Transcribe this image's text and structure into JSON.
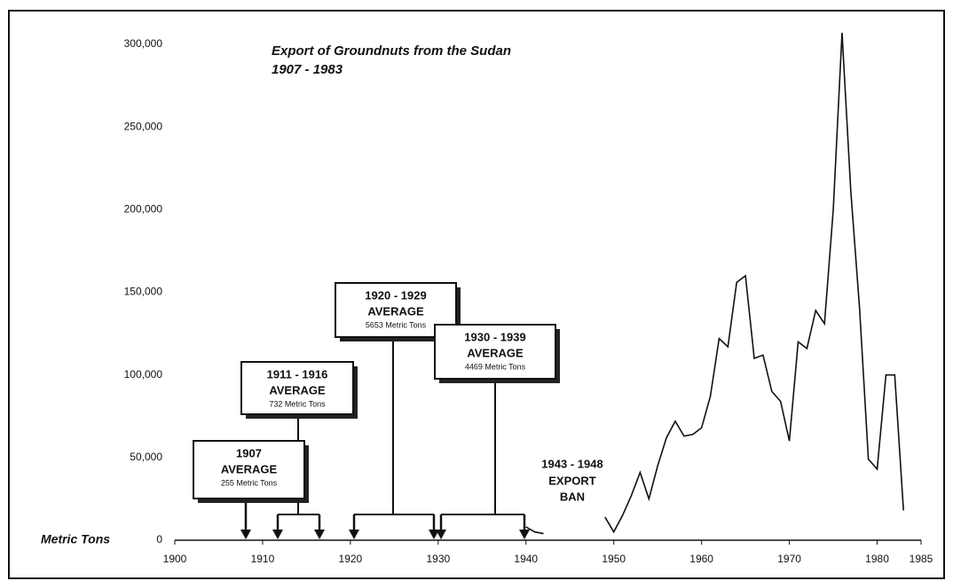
{
  "chart_data": {
    "type": "line",
    "title": "Export of Groundnuts from the Sudan",
    "subtitle": "1907 - 1983",
    "y_label": "Metric Tons",
    "x": [
      1940,
      1941,
      1942,
      1943,
      1949,
      1950,
      1951,
      1952,
      1953,
      1954,
      1955,
      1956,
      1957,
      1958,
      1959,
      1960,
      1961,
      1962,
      1963,
      1964,
      1965,
      1966,
      1967,
      1968,
      1969,
      1970,
      1971,
      1972,
      1973,
      1974,
      1975,
      1976,
      1977,
      1978,
      1979,
      1980,
      1981,
      1982,
      1983
    ],
    "series": [
      {
        "name": "Exports",
        "color": "#111111",
        "values": [
          8000,
          5000,
          4000,
          null,
          14000,
          5000,
          15000,
          27000,
          41000,
          25000,
          45000,
          62000,
          72000,
          63000,
          64000,
          68000,
          87000,
          122000,
          117000,
          156000,
          160000,
          110000,
          112000,
          90000,
          84000,
          60000,
          120000,
          116000,
          139000,
          131000,
          200000,
          307000,
          211000,
          140000,
          49000,
          43000,
          100000,
          100000,
          18000
        ]
      }
    ],
    "xlim": [
      1900,
      1985
    ],
    "ylim": [
      0,
      300000
    ],
    "xticks": [
      1900,
      1910,
      1920,
      1930,
      1940,
      1950,
      1960,
      1970,
      1980,
      1985
    ],
    "yticks": [
      0,
      {
        "value": 50000,
        "label": "50,000"
      },
      {
        "value": 100000,
        "label": "100,000"
      },
      {
        "value": 150000,
        "label": "150,000"
      },
      {
        "value": 200000,
        "label": "200,000"
      },
      {
        "value": 250000,
        "label": "250,000"
      },
      {
        "value": 300000,
        "label": "300,000"
      }
    ],
    "annotations": [
      {
        "lines": [
          "1907",
          "AVERAGE",
          "255 Metric Tons"
        ]
      },
      {
        "lines": [
          "1911 - 1916",
          "AVERAGE",
          "732 Metric Tons"
        ]
      },
      {
        "lines": [
          "1920 - 1929",
          "AVERAGE",
          "5653 Metric Tons"
        ]
      },
      {
        "lines": [
          "1930 - 1939",
          "AVERAGE",
          "4469 Metric Tons"
        ]
      },
      {
        "lines": [
          "1943 - 1948",
          "EXPORT",
          "BAN"
        ]
      }
    ]
  }
}
